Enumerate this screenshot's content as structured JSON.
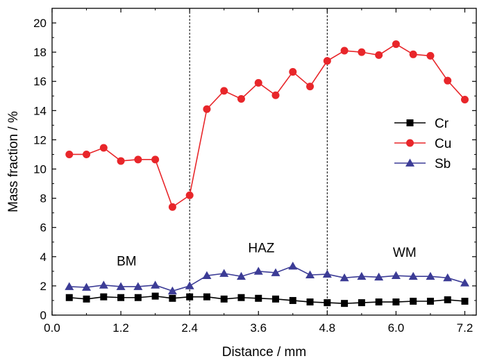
{
  "chart_data": {
    "type": "line",
    "title": "",
    "xlabel": "Distance / mm",
    "ylabel": "Mass fraction / %",
    "xlim": [
      0,
      7.4
    ],
    "ylim": [
      0,
      21
    ],
    "xticks": [
      "0.0",
      "1.2",
      "2.4",
      "3.6",
      "4.8",
      "6.0",
      "7.2"
    ],
    "xtick_values": [
      0.0,
      1.2,
      2.4,
      3.6,
      4.8,
      6.0,
      7.2
    ],
    "yticks": [
      "0",
      "2",
      "4",
      "6",
      "8",
      "10",
      "12",
      "14",
      "16",
      "18",
      "20"
    ],
    "ytick_values": [
      0,
      2,
      4,
      6,
      8,
      10,
      12,
      14,
      16,
      18,
      20
    ],
    "vertical_lines": [
      2.4,
      4.8
    ],
    "regions": [
      {
        "label": "BM",
        "x": 1.3,
        "y": 3.4
      },
      {
        "label": "HAZ",
        "x": 3.65,
        "y": 4.3
      },
      {
        "label": "WM",
        "x": 6.15,
        "y": 4.0
      }
    ],
    "legend_position": "right",
    "x": [
      0.3,
      0.6,
      0.9,
      1.2,
      1.5,
      1.8,
      2.1,
      2.4,
      2.7,
      3.0,
      3.3,
      3.6,
      3.9,
      4.2,
      4.5,
      4.8,
      5.1,
      5.4,
      5.7,
      6.0,
      6.3,
      6.6,
      6.9,
      7.2
    ],
    "series": [
      {
        "name": "Cr",
        "color": "#000000",
        "marker": "square",
        "values": [
          1.2,
          1.1,
          1.25,
          1.2,
          1.2,
          1.3,
          1.15,
          1.25,
          1.25,
          1.1,
          1.2,
          1.15,
          1.1,
          1.0,
          0.9,
          0.85,
          0.8,
          0.85,
          0.9,
          0.9,
          0.95,
          0.95,
          1.05,
          0.95
        ]
      },
      {
        "name": "Cu",
        "color": "#e8262a",
        "marker": "circle",
        "values": [
          11.0,
          11.0,
          11.45,
          10.55,
          10.65,
          10.65,
          7.4,
          8.2,
          14.1,
          15.35,
          14.8,
          15.9,
          15.05,
          16.65,
          15.65,
          17.4,
          18.1,
          18.0,
          17.8,
          18.55,
          17.85,
          17.75,
          16.05,
          14.75
        ]
      },
      {
        "name": "Sb",
        "color": "#3c3c96",
        "marker": "triangle",
        "values": [
          1.95,
          1.9,
          2.05,
          1.95,
          1.95,
          2.05,
          1.65,
          2.0,
          2.7,
          2.85,
          2.65,
          3.0,
          2.9,
          3.35,
          2.75,
          2.8,
          2.55,
          2.65,
          2.6,
          2.7,
          2.65,
          2.65,
          2.55,
          2.2
        ]
      }
    ]
  }
}
